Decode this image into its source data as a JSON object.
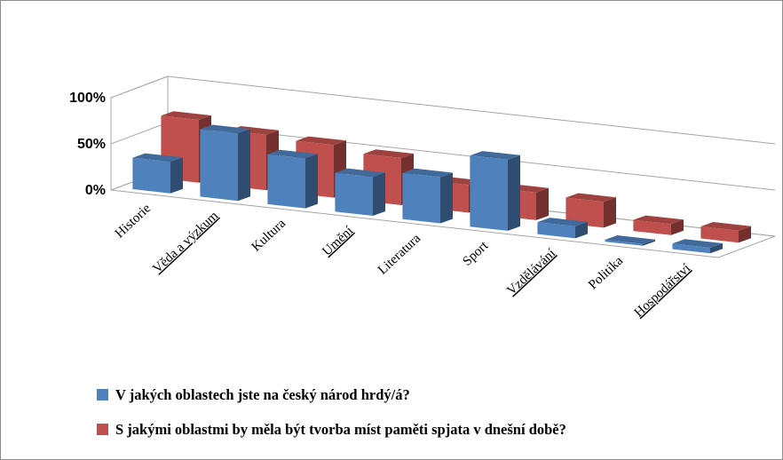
{
  "chart_data": {
    "type": "bar",
    "categories": [
      "Historie",
      "Věda a výzkum",
      "Kultura",
      "Umění",
      "Literatura",
      "Sport",
      "Vzdělávání",
      "Politika",
      "Hospodářství"
    ],
    "y_ticks": [
      "0%",
      "50%",
      "100%"
    ],
    "ylim": [
      0,
      100
    ],
    "grid": true,
    "legend_position": "bottom",
    "series": [
      {
        "name": "V jakých oblastech jste na český národ hrdý/á?",
        "color": "#4f81bd",
        "values": [
          34,
          73,
          54,
          42,
          50,
          77,
          13,
          2,
          6
        ]
      },
      {
        "name": "S jakými oblastmi by měla být tvorba míst paměti spjata v dnešní době?",
        "color": "#c0504d",
        "values": [
          68,
          60,
          57,
          51,
          30,
          30,
          28,
          12,
          13
        ]
      }
    ]
  }
}
